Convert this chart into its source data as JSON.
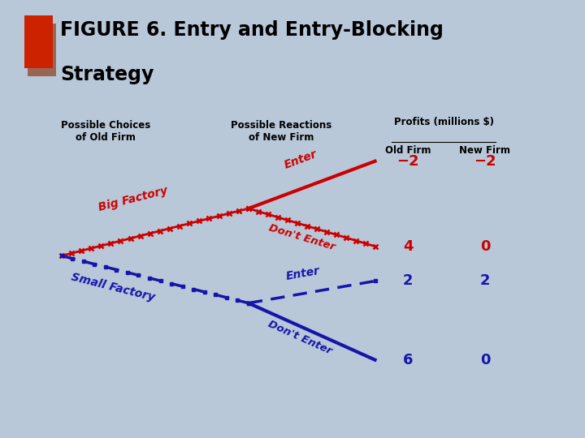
{
  "title_bg": "#FFFCE0",
  "title_icon_color": "#CC2200",
  "diagram_bg": "#F0EDE0",
  "outer_bg": "#B8C8D8",
  "red_color": "#CC0000",
  "blue_color": "#1515AA",
  "col1_header": "Possible Choices\nof Old Firm",
  "col2_header": "Possible Reactions\nof New Firm",
  "col3_header": "Profits (millions $)",
  "col3_sub1": "Old Firm",
  "col3_sub2": "New Firm",
  "big_factory_label": "Big Factory",
  "small_factory_label": "Small Factory",
  "enter_label1": "Enter",
  "dont_enter_label1": "Don't Enter",
  "enter_label2": "Enter",
  "dont_enter_label2": "Don't Enter",
  "profits": [
    [
      "−2",
      "−2"
    ],
    [
      "4",
      "0"
    ],
    [
      "2",
      "2"
    ],
    [
      "6",
      "0"
    ]
  ]
}
